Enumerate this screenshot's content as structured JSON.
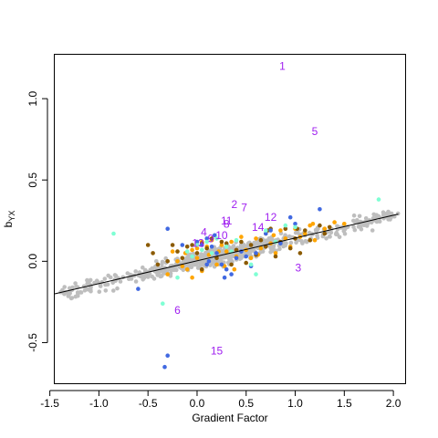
{
  "chart_data": {
    "type": "scatter",
    "title": "",
    "xlabel": "Gradient Factor",
    "ylabel": "b",
    "ylabel_sub": "YX",
    "xlim": [
      -1.45,
      2.12
    ],
    "ylim": [
      -0.75,
      1.27
    ],
    "x_ticks": [
      -1.5,
      -1.0,
      -0.5,
      0.0,
      0.5,
      1.0,
      1.5,
      2.0
    ],
    "x_tick_labels": [
      "-1.5",
      "-1.0",
      "-0.5",
      "0.0",
      "0.5",
      "1.0",
      "1.5",
      "2.0"
    ],
    "y_ticks": [
      -0.5,
      0.0,
      0.5,
      1.0
    ],
    "y_tick_labels": [
      "-0.5",
      "0.0",
      "0.5",
      "1.0"
    ],
    "grid": false,
    "regression_line": {
      "x": [
        -1.45,
        2.05
      ],
      "y": [
        -0.2,
        0.29
      ]
    },
    "colors": {
      "gray": "#bebebe",
      "orange": "#ffa500",
      "brown": "#8b5a00",
      "blue": "#4169e1",
      "aquamarine": "#7fffd4",
      "purple": "#a020f0",
      "line": "#000000"
    },
    "series": [
      {
        "color": "gray",
        "generated_from_band": true,
        "count": 700,
        "x_range": [
          -1.4,
          2.05
        ],
        "slope": 0.14,
        "intercept": 0.0
      },
      {
        "color": "orange",
        "points": [
          [
            -0.25,
            0.06
          ],
          [
            -0.2,
            0.0
          ],
          [
            -0.1,
            -0.05
          ],
          [
            -0.05,
            0.07
          ],
          [
            0.0,
            0.02
          ],
          [
            0.05,
            -0.06
          ],
          [
            0.1,
            0.09
          ],
          [
            0.12,
            0.04
          ],
          [
            0.2,
            -0.02
          ],
          [
            0.25,
            0.1
          ],
          [
            0.3,
            0.06
          ],
          [
            0.35,
            0.12
          ],
          [
            0.4,
            0.03
          ],
          [
            0.45,
            0.15
          ],
          [
            0.5,
            0.07
          ],
          [
            0.55,
            0.02
          ],
          [
            0.6,
            0.14
          ],
          [
            0.65,
            0.08
          ],
          [
            0.7,
            0.17
          ],
          [
            0.75,
            0.11
          ],
          [
            0.8,
            0.05
          ],
          [
            0.85,
            0.19
          ],
          [
            0.9,
            0.14
          ],
          [
            0.95,
            0.09
          ],
          [
            1.0,
            0.2
          ],
          [
            1.05,
            0.15
          ],
          [
            1.1,
            0.17
          ],
          [
            1.15,
            0.22
          ],
          [
            1.2,
            0.13
          ],
          [
            1.3,
            0.2
          ],
          [
            1.4,
            0.24
          ],
          [
            1.5,
            0.23
          ],
          [
            -0.3,
            -0.08
          ],
          [
            -0.15,
            -0.03
          ],
          [
            0.15,
            0.13
          ],
          [
            0.05,
            0.12
          ],
          [
            -0.05,
            -0.1
          ],
          [
            0.0,
            0.08
          ],
          [
            0.22,
            0.06
          ],
          [
            0.38,
            -0.05
          ],
          [
            0.62,
            0.04
          ],
          [
            0.78,
            0.16
          ],
          [
            1.18,
            0.23
          ],
          [
            -0.12,
            0.05
          ],
          [
            0.28,
            -0.03
          ]
        ]
      },
      {
        "color": "brown",
        "points": [
          [
            -0.5,
            0.1
          ],
          [
            -0.45,
            0.05
          ],
          [
            -0.3,
            0.0
          ],
          [
            -0.25,
            0.1
          ],
          [
            -0.2,
            0.06
          ],
          [
            -0.1,
            0.09
          ],
          [
            0.0,
            0.05
          ],
          [
            0.05,
            0.11
          ],
          [
            0.1,
            0.08
          ],
          [
            0.15,
            0.14
          ],
          [
            0.2,
            0.02
          ],
          [
            0.3,
            0.11
          ],
          [
            0.4,
            0.07
          ],
          [
            0.45,
            0.12
          ],
          [
            0.5,
            -0.01
          ],
          [
            0.55,
            0.1
          ],
          [
            0.6,
            0.04
          ],
          [
            0.65,
            0.13
          ],
          [
            0.7,
            0.09
          ],
          [
            0.75,
            0.2
          ],
          [
            0.8,
            0.03
          ],
          [
            0.85,
            0.12
          ],
          [
            0.9,
            0.2
          ],
          [
            0.95,
            0.08
          ],
          [
            1.0,
            0.14
          ],
          [
            1.05,
            0.05
          ],
          [
            1.1,
            0.19
          ],
          [
            1.15,
            0.13
          ],
          [
            1.25,
            0.22
          ],
          [
            1.3,
            0.17
          ],
          [
            1.35,
            0.21
          ],
          [
            -0.4,
            -0.02
          ],
          [
            -0.05,
            0.1
          ],
          [
            0.25,
            0.12
          ],
          [
            0.35,
            -0.02
          ],
          [
            0.05,
            -0.05
          ],
          [
            0.72,
            0.19
          ],
          [
            -0.15,
            0.02
          ],
          [
            1.02,
            0.2
          ]
        ]
      },
      {
        "color": "blue",
        "points": [
          [
            -0.3,
            0.2
          ],
          [
            -0.6,
            -0.17
          ],
          [
            -0.3,
            -0.58
          ],
          [
            -0.33,
            -0.65
          ],
          [
            -0.15,
            0.1
          ],
          [
            0.0,
            0.12
          ],
          [
            0.05,
            0.1
          ],
          [
            0.1,
            0.14
          ],
          [
            0.15,
            0.09
          ],
          [
            0.18,
            0.16
          ],
          [
            0.25,
            -0.02
          ],
          [
            0.3,
            -0.05
          ],
          [
            0.35,
            -0.08
          ],
          [
            0.4,
            0.02
          ],
          [
            0.45,
            0.06
          ],
          [
            0.5,
            0.03
          ],
          [
            0.7,
            0.17
          ],
          [
            0.75,
            0.19
          ],
          [
            0.95,
            0.27
          ],
          [
            1.0,
            0.23
          ],
          [
            1.25,
            0.32
          ],
          [
            0.1,
            -0.02
          ],
          [
            0.2,
            0.05
          ],
          [
            0.55,
            -0.03
          ],
          [
            0.6,
            0.05
          ],
          [
            0.85,
            0.11
          ],
          [
            0.28,
            -0.1
          ],
          [
            0.12,
            0.0
          ]
        ]
      },
      {
        "color": "aquamarine",
        "points": [
          [
            -0.85,
            0.17
          ],
          [
            -0.35,
            -0.26
          ],
          [
            -0.1,
            0.06
          ],
          [
            -0.05,
            0.03
          ],
          [
            0.0,
            0.1
          ],
          [
            0.05,
            0.07
          ],
          [
            0.1,
            0.12
          ],
          [
            0.15,
            0.05
          ],
          [
            0.3,
            0.09
          ],
          [
            0.35,
            0.06
          ],
          [
            0.4,
            0.13
          ],
          [
            0.6,
            -0.08
          ],
          [
            0.7,
            0.19
          ],
          [
            0.8,
            0.12
          ],
          [
            0.9,
            0.22
          ],
          [
            1.0,
            0.21
          ],
          [
            1.85,
            0.38
          ],
          [
            0.55,
            -0.02
          ],
          [
            -0.2,
            -0.1
          ],
          [
            0.2,
            0.14
          ]
        ]
      }
    ],
    "annotations": [
      {
        "label": "1",
        "x": 0.87,
        "y": 1.2
      },
      {
        "label": "2",
        "x": 0.38,
        "y": 0.35
      },
      {
        "label": "3",
        "x": 1.03,
        "y": -0.04
      },
      {
        "label": "4",
        "x": 0.07,
        "y": 0.18
      },
      {
        "label": "5",
        "x": 1.2,
        "y": 0.8
      },
      {
        "label": "6",
        "x": -0.2,
        "y": -0.3
      },
      {
        "label": "7",
        "x": 0.48,
        "y": 0.33
      },
      {
        "label": "8",
        "x": 0.3,
        "y": 0.23
      },
      {
        "label": "9",
        "x": 0.14,
        "y": 0.14
      },
      {
        "label": "10",
        "x": 0.25,
        "y": 0.16
      },
      {
        "label": "11",
        "x": 0.3,
        "y": 0.25
      },
      {
        "label": "12",
        "x": 0.75,
        "y": 0.27
      },
      {
        "label": "13",
        "x": 0.01,
        "y": 0.11
      },
      {
        "label": "14",
        "x": 0.62,
        "y": 0.21
      },
      {
        "label": "15",
        "x": 0.2,
        "y": -0.55
      }
    ]
  }
}
